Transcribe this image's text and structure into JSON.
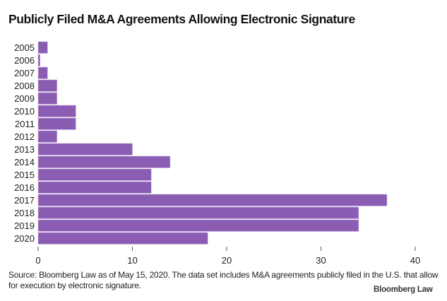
{
  "chart_data": {
    "type": "bar",
    "orientation": "horizontal",
    "title": "Publicly Filed M&A Agreements Allowing Electronic Signature",
    "categories": [
      "2005",
      "2006",
      "2007",
      "2008",
      "2009",
      "2010",
      "2011",
      "2012",
      "2013",
      "2014",
      "2015",
      "2016",
      "2017",
      "2018",
      "2019",
      "2020"
    ],
    "values": [
      1,
      0.2,
      1,
      2,
      2,
      4,
      4,
      2,
      10,
      14,
      12,
      12,
      37,
      34,
      34,
      18
    ],
    "xlabel": "",
    "ylabel": "",
    "xlim": [
      0,
      40
    ],
    "xticks": [
      0,
      10,
      20,
      30,
      40
    ],
    "xtick_labels": [
      "0",
      "10",
      "20",
      "30",
      "40"
    ],
    "grid": false,
    "legend": "none",
    "bar_color": "#8a5db3"
  },
  "footer": {
    "source": "Source: Bloomberg Law as of May 15, 2020. The data set includes M&A agreements publicly filed in the U.S. that allow for execution by electronic signature.",
    "brand": "Bloomberg Law"
  }
}
